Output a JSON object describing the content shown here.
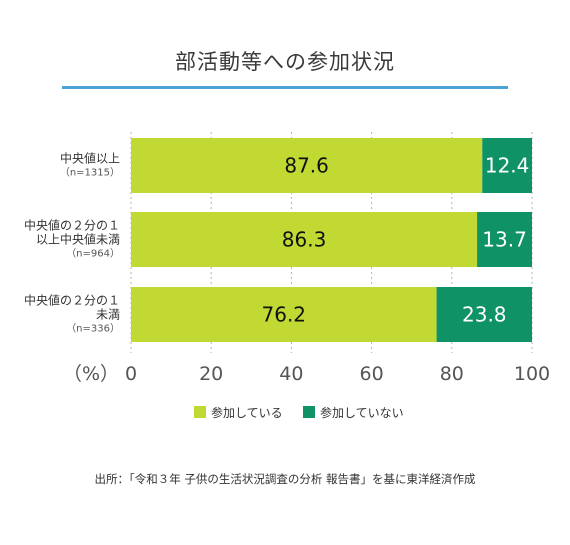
{
  "title": "部活動等への参加状況",
  "source": "出所：「令和３年 子供の生活状況調査の分析 報告書」を基に東洋経済作成",
  "colors": {
    "participating": "#c2d933",
    "not_participating": "#0f9366",
    "title_rule": "#4aa3d4"
  },
  "chart_data": {
    "type": "bar",
    "orientation": "horizontal",
    "stacked": true,
    "categories": [
      {
        "lines": [
          "中央値以上"
        ],
        "n": "（n=1315）"
      },
      {
        "lines": [
          "中央値の２分の１",
          "以上中央値未満"
        ],
        "n": "（n=964）"
      },
      {
        "lines": [
          "中央値の２分の１",
          "未満"
        ],
        "n": "（n=336）"
      }
    ],
    "series": [
      {
        "name": "参加している",
        "values": [
          87.6,
          86.3,
          76.2
        ],
        "labels": [
          "87.6",
          "86.3",
          "76.2"
        ]
      },
      {
        "name": "参加していない",
        "values": [
          12.4,
          13.7,
          23.8
        ],
        "labels": [
          "12.4",
          "13.7",
          "23.8"
        ]
      }
    ],
    "xlabel": "（%）",
    "xlim": [
      0,
      100
    ],
    "xticks": [
      "0",
      "20",
      "40",
      "60",
      "80",
      "100"
    ],
    "grid": true,
    "legend_position": "bottom"
  }
}
